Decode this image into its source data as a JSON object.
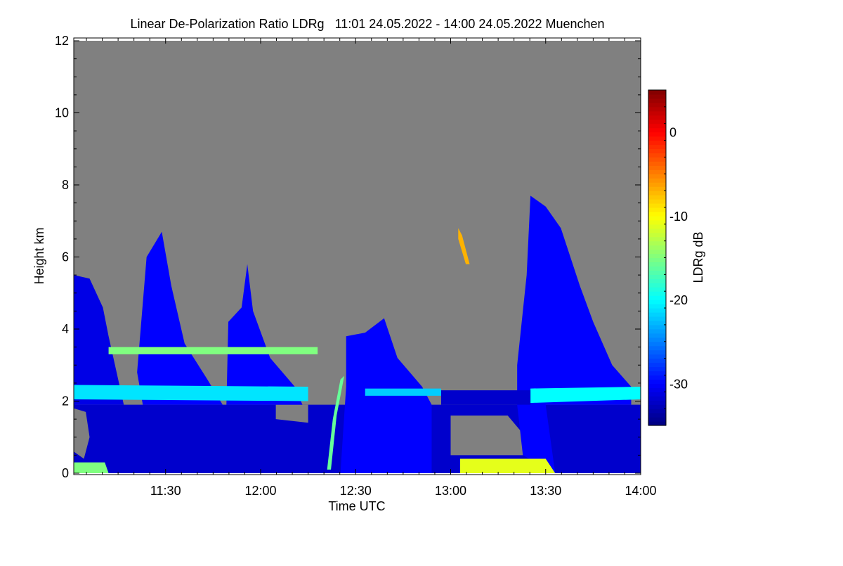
{
  "chart_data": {
    "type": "heatmap",
    "title": "Linear De-Polarization Ratio LDRg   11:01 24.05.2022 - 14:00 24.05.2022 Muenchen",
    "xlabel": "Time UTC",
    "ylabel": "Height km",
    "colorbar_label": "LDRg dB",
    "xlim_hours_utc": [
      11.0167,
      14.0
    ],
    "ylim": [
      0,
      12
    ],
    "zlim": [
      -35,
      5
    ],
    "x_ticks": [
      {
        "v": 11.5,
        "label": "11:30"
      },
      {
        "v": 12.0,
        "label": "12:00"
      },
      {
        "v": 12.5,
        "label": "12:30"
      },
      {
        "v": 13.0,
        "label": "13:00"
      },
      {
        "v": 13.5,
        "label": "13:30"
      },
      {
        "v": 14.0,
        "label": "14:00"
      }
    ],
    "y_ticks": [
      {
        "v": 0,
        "label": "0"
      },
      {
        "v": 2,
        "label": "2"
      },
      {
        "v": 4,
        "label": "4"
      },
      {
        "v": 6,
        "label": "6"
      },
      {
        "v": 8,
        "label": "8"
      },
      {
        "v": 10,
        "label": "10"
      },
      {
        "v": 12,
        "label": "12"
      }
    ],
    "colorbar_ticks": [
      {
        "v": 0,
        "label": "0"
      },
      {
        "v": -10,
        "label": "-10"
      },
      {
        "v": -20,
        "label": "-20"
      },
      {
        "v": -30,
        "label": "-30"
      }
    ],
    "no_data_color": "#808080",
    "features": [
      {
        "name": "boundary-layer",
        "ldr": -32,
        "points": [
          [
            11.0167,
            0
          ],
          [
            14.0,
            0
          ],
          [
            14.0,
            1.9
          ],
          [
            11.0167,
            1.9
          ]
        ]
      },
      {
        "name": "no-signal-left",
        "ldr": null,
        "points": [
          [
            11.0167,
            0.6
          ],
          [
            11.07,
            0.4
          ],
          [
            11.1,
            1.0
          ],
          [
            11.08,
            1.7
          ],
          [
            11.0167,
            1.8
          ]
        ]
      },
      {
        "name": "no-signal-1300",
        "ldr": null,
        "points": [
          [
            13.0,
            0.5
          ],
          [
            13.4,
            0.5
          ],
          [
            13.38,
            1.1
          ],
          [
            13.3,
            1.6
          ],
          [
            13.0,
            1.6
          ]
        ]
      },
      {
        "name": "no-signal-1205",
        "ldr": null,
        "points": [
          [
            12.08,
            1.5
          ],
          [
            12.25,
            1.4
          ],
          [
            12.25,
            1.9
          ],
          [
            12.08,
            1.9
          ]
        ]
      },
      {
        "name": "cloud-plume-1",
        "ldr": -31,
        "points": [
          [
            11.0167,
            1.9
          ],
          [
            11.0167,
            5.5
          ],
          [
            11.1,
            5.4
          ],
          [
            11.17,
            4.6
          ],
          [
            11.2,
            3.8
          ],
          [
            11.28,
            1.9
          ]
        ]
      },
      {
        "name": "cloud-plume-2",
        "ldr": -30,
        "points": [
          [
            11.38,
            1.9
          ],
          [
            11.35,
            2.8
          ],
          [
            11.4,
            6.0
          ],
          [
            11.48,
            6.7
          ],
          [
            11.53,
            5.2
          ],
          [
            11.6,
            3.6
          ],
          [
            11.72,
            2.6
          ],
          [
            11.8,
            1.9
          ]
        ]
      },
      {
        "name": "cloud-plume-3",
        "ldr": -30,
        "points": [
          [
            11.82,
            1.9
          ],
          [
            11.83,
            4.2
          ],
          [
            11.9,
            4.6
          ],
          [
            11.93,
            5.8
          ],
          [
            11.96,
            4.5
          ],
          [
            12.05,
            3.2
          ],
          [
            12.18,
            2.4
          ],
          [
            12.22,
            1.9
          ]
        ]
      },
      {
        "name": "cloud-plume-4",
        "ldr": -30,
        "points": [
          [
            12.3,
            0
          ],
          [
            12.42,
            0
          ],
          [
            12.45,
            2.4
          ],
          [
            12.45,
            3.8
          ],
          [
            12.55,
            3.9
          ],
          [
            12.65,
            4.3
          ],
          [
            12.72,
            3.2
          ],
          [
            12.85,
            2.4
          ],
          [
            12.9,
            1.9
          ],
          [
            12.9,
            0
          ]
        ]
      },
      {
        "name": "cloud-plume-5",
        "ldr": -30,
        "points": [
          [
            13.38,
            0.5
          ],
          [
            13.35,
            1.9
          ],
          [
            13.35,
            3.0
          ],
          [
            13.4,
            5.5
          ],
          [
            13.42,
            7.7
          ],
          [
            13.5,
            7.4
          ],
          [
            13.58,
            6.8
          ],
          [
            13.68,
            5.2
          ],
          [
            13.75,
            4.2
          ],
          [
            13.85,
            3.0
          ],
          [
            13.95,
            2.4
          ],
          [
            13.95,
            1.9
          ],
          [
            13.5,
            1.9
          ],
          [
            13.55,
            0
          ]
        ]
      },
      {
        "name": "aerosol-layer",
        "ldr": -21,
        "points": [
          [
            11.0167,
            2.05
          ],
          [
            12.25,
            2.0
          ],
          [
            12.25,
            2.4
          ],
          [
            11.0167,
            2.45
          ]
        ]
      },
      {
        "name": "aerosol-layer-2",
        "ldr": -22,
        "points": [
          [
            12.55,
            2.15
          ],
          [
            12.95,
            2.15
          ],
          [
            12.95,
            2.35
          ],
          [
            12.55,
            2.35
          ]
        ]
      },
      {
        "name": "aerosol-layer-3",
        "ldr": -20,
        "points": [
          [
            13.42,
            1.95
          ],
          [
            14.0,
            2.05
          ],
          [
            14.0,
            2.4
          ],
          [
            13.42,
            2.35
          ]
        ]
      },
      {
        "name": "thin-layer-1330",
        "ldr": -32,
        "points": [
          [
            12.95,
            1.9
          ],
          [
            13.42,
            1.9
          ],
          [
            13.42,
            2.3
          ],
          [
            12.95,
            2.3
          ]
        ]
      },
      {
        "name": "depolarizing-streak-1222",
        "ldr": -16,
        "points": [
          [
            12.35,
            0.1
          ],
          [
            12.38,
            1.5
          ],
          [
            12.42,
            2.6
          ],
          [
            12.44,
            2.7
          ],
          [
            12.4,
            1.6
          ],
          [
            12.37,
            0.1
          ]
        ]
      },
      {
        "name": "ice-streak-1305",
        "ldr": -7,
        "points": [
          [
            13.04,
            6.8
          ],
          [
            13.06,
            6.6
          ],
          [
            13.1,
            5.8
          ],
          [
            13.08,
            5.8
          ],
          [
            13.04,
            6.5
          ]
        ]
      },
      {
        "name": "surface-aerosol-left",
        "ldr": -15,
        "points": [
          [
            11.0167,
            0
          ],
          [
            11.2,
            0
          ],
          [
            11.18,
            0.3
          ],
          [
            11.0167,
            0.3
          ]
        ]
      },
      {
        "name": "surface-aerosol-1310",
        "ldr": -11,
        "points": [
          [
            13.05,
            0
          ],
          [
            13.55,
            0
          ],
          [
            13.5,
            0.4
          ],
          [
            13.05,
            0.4
          ]
        ]
      },
      {
        "name": "speckle-layer-3.4km",
        "ldr": -15,
        "points": [
          [
            11.2,
            3.3
          ],
          [
            12.3,
            3.3
          ],
          [
            12.3,
            3.5
          ],
          [
            11.2,
            3.5
          ]
        ]
      }
    ]
  }
}
